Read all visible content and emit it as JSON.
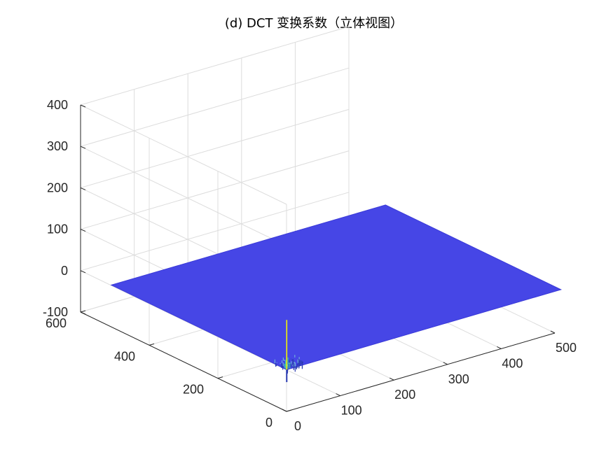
{
  "chart_data": {
    "type": "surface",
    "title": "(d) DCT 变换系数（立体视图）",
    "x_ticks": [
      "0",
      "100",
      "200",
      "300",
      "400",
      "500"
    ],
    "y_ticks": [
      "0",
      "200",
      "400",
      "600"
    ],
    "z_ticks": [
      "-100",
      "0",
      "100",
      "200",
      "300",
      "400"
    ],
    "xlim": [
      0,
      500
    ],
    "ylim": [
      0,
      600
    ],
    "zlim": [
      -100,
      400
    ],
    "grid": true,
    "surface": {
      "x_range": [
        1,
        512
      ],
      "y_range": [
        1,
        512
      ],
      "base_value": 0,
      "peak": {
        "x": 1,
        "y": 1,
        "value": 120
      },
      "dip_min": -30
    },
    "colors": {
      "surface": "#4646e6",
      "surface_edge": "#3a3ad8",
      "peak": "#f5f500",
      "low": "#2a3ab0"
    }
  }
}
